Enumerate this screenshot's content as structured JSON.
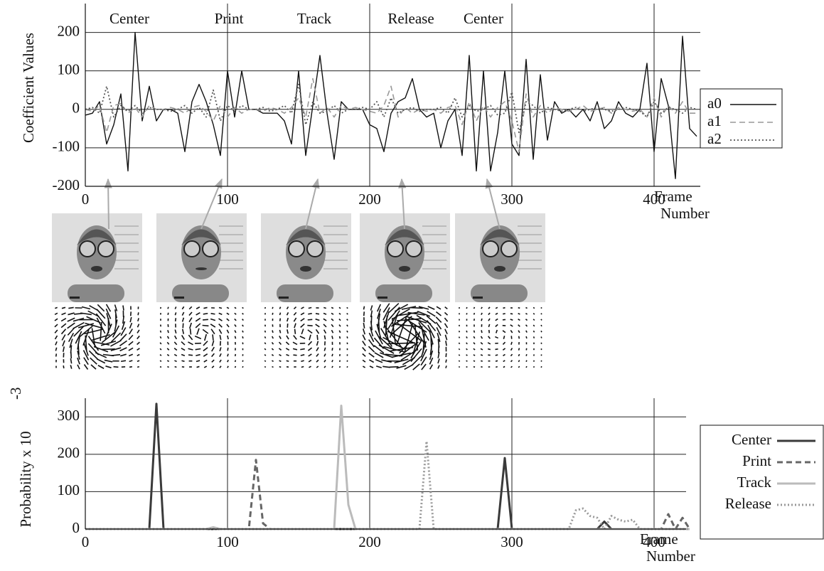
{
  "chart_data": [
    {
      "type": "line",
      "y_label": "Coefficient Values",
      "x_label": [
        "Frame",
        "Number"
      ],
      "annotations": [
        {
          "text": "Center",
          "x": 31
        },
        {
          "text": "Print",
          "x": 101
        },
        {
          "text": "Track",
          "x": 161
        },
        {
          "text": "Release",
          "x": 229
        },
        {
          "text": "Center",
          "x": 280
        }
      ],
      "x": [
        0,
        5,
        10,
        15,
        20,
        25,
        30,
        35,
        40,
        45,
        50,
        55,
        60,
        65,
        70,
        75,
        80,
        85,
        90,
        95,
        100,
        105,
        110,
        115,
        120,
        125,
        130,
        135,
        140,
        145,
        150,
        155,
        160,
        165,
        170,
        175,
        180,
        185,
        190,
        195,
        200,
        205,
        210,
        215,
        220,
        225,
        230,
        235,
        240,
        245,
        250,
        255,
        260,
        265,
        270,
        275,
        280,
        285,
        290,
        295,
        300,
        305,
        310,
        315,
        320,
        325,
        330,
        335,
        340,
        345,
        350,
        355,
        360,
        365,
        370,
        375,
        380,
        385,
        390,
        395,
        400,
        405,
        410,
        415,
        420,
        425,
        430
      ],
      "series": [
        {
          "name": "a0",
          "color": "#111111",
          "line_style": "solid",
          "line_width": 1.4,
          "values": [
            -15,
            -10,
            20,
            -90,
            -40,
            40,
            -160,
            200,
            -30,
            60,
            -30,
            0,
            0,
            -10,
            -110,
            20,
            65,
            20,
            -40,
            -120,
            100,
            -20,
            100,
            0,
            0,
            -10,
            -10,
            -10,
            -30,
            -90,
            100,
            -120,
            10,
            140,
            -10,
            -130,
            20,
            0,
            0,
            0,
            -40,
            -50,
            -110,
            -10,
            20,
            30,
            80,
            0,
            -20,
            -10,
            -100,
            -30,
            0,
            -120,
            140,
            -160,
            100,
            -160,
            -60,
            100,
            -90,
            -120,
            130,
            -130,
            90,
            -80,
            20,
            -10,
            0,
            -20,
            0,
            -30,
            20,
            -50,
            -30,
            20,
            -10,
            -20,
            0,
            120,
            -110,
            80,
            10,
            -180,
            190,
            -50,
            -70
          ]
        },
        {
          "name": "a1",
          "color": "#999999",
          "line_style": "dashed",
          "line_width": 1.6,
          "values": [
            0,
            -5,
            10,
            -60,
            10,
            15,
            -10,
            5,
            -20,
            10,
            0,
            0,
            5,
            0,
            -10,
            5,
            10,
            -5,
            -30,
            10,
            -20,
            5,
            -10,
            0,
            0,
            -5,
            5,
            0,
            -10,
            5,
            30,
            -20,
            80,
            -10,
            5,
            -20,
            10,
            0,
            5,
            0,
            -5,
            -10,
            10,
            60,
            -20,
            5,
            -10,
            0,
            -5,
            0,
            -10,
            5,
            10,
            -40,
            20,
            -30,
            10,
            -20,
            5,
            20,
            -30,
            -110,
            40,
            -20,
            10,
            -10,
            5,
            0,
            -5,
            0,
            10,
            -5,
            0,
            5,
            -10,
            5,
            0,
            -5,
            0,
            -20,
            30,
            -20,
            10,
            -10,
            20,
            -10,
            -10
          ]
        },
        {
          "name": "a2",
          "color": "#555555",
          "line_style": "dotted",
          "line_width": 1.8,
          "values": [
            0,
            5,
            -10,
            60,
            -20,
            10,
            -5,
            10,
            -10,
            5,
            0,
            0,
            -5,
            0,
            10,
            -10,
            5,
            -20,
            50,
            -30,
            10,
            -5,
            10,
            0,
            0,
            5,
            -5,
            0,
            10,
            -10,
            65,
            -40,
            20,
            -10,
            -5,
            10,
            -10,
            0,
            0,
            5,
            0,
            20,
            -20,
            30,
            -10,
            0,
            5,
            -5,
            0,
            0,
            5,
            -10,
            30,
            -20,
            10,
            -5,
            0,
            10,
            -15,
            -10,
            45,
            -60,
            20,
            10,
            -10,
            5,
            0,
            -5,
            0,
            5,
            -5,
            0,
            5,
            0,
            -5,
            0,
            5,
            0,
            -5,
            -20,
            20,
            -10,
            5,
            0,
            -10,
            5,
            0
          ]
        }
      ],
      "xlim": [
        0,
        432.5
      ],
      "xticks": [
        0,
        100,
        200,
        300,
        400
      ],
      "ylim": [
        -200,
        275
      ],
      "yticks": [
        -200,
        -100,
        0,
        100,
        200
      ],
      "grid": true,
      "legend": "right"
    },
    {
      "type": "line",
      "y_label": "Probability x 10",
      "y_label_exponent": "-3",
      "x_label": [
        "Frame",
        "Number"
      ],
      "x": [
        0,
        5,
        10,
        15,
        20,
        25,
        30,
        35,
        40,
        45,
        50,
        55,
        60,
        65,
        70,
        75,
        80,
        85,
        90,
        95,
        100,
        105,
        110,
        115,
        120,
        125,
        130,
        135,
        140,
        145,
        150,
        155,
        160,
        165,
        170,
        175,
        180,
        185,
        190,
        195,
        200,
        205,
        210,
        215,
        220,
        225,
        230,
        235,
        240,
        245,
        250,
        255,
        260,
        265,
        270,
        275,
        280,
        285,
        290,
        295,
        300,
        305,
        310,
        315,
        320,
        325,
        330,
        335,
        340,
        345,
        350,
        355,
        360,
        365,
        370,
        375,
        380,
        385,
        390,
        395,
        400,
        405,
        410,
        415,
        420,
        425
      ],
      "series": [
        {
          "name": "Center",
          "color": "#3a3a3a",
          "line_style": "solid",
          "line_width": 3,
          "values": [
            0,
            0,
            0,
            0,
            0,
            0,
            0,
            0,
            0,
            0,
            335,
            0,
            0,
            0,
            0,
            0,
            0,
            0,
            0,
            0,
            0,
            0,
            0,
            0,
            0,
            0,
            0,
            0,
            0,
            0,
            0,
            0,
            0,
            0,
            0,
            0,
            0,
            0,
            0,
            0,
            0,
            0,
            0,
            0,
            0,
            0,
            0,
            0,
            0,
            0,
            0,
            0,
            0,
            0,
            0,
            0,
            0,
            0,
            0,
            190,
            0,
            0,
            0,
            0,
            0,
            0,
            0,
            0,
            0,
            0,
            0,
            0,
            0,
            20,
            0,
            0,
            0,
            0,
            0,
            0,
            0,
            0,
            0,
            0,
            0,
            0
          ]
        },
        {
          "name": "Print",
          "color": "#666666",
          "line_style": "dashed",
          "line_width": 3,
          "values": [
            0,
            0,
            0,
            0,
            0,
            0,
            0,
            0,
            0,
            0,
            0,
            0,
            0,
            0,
            0,
            0,
            0,
            0,
            0,
            0,
            0,
            0,
            0,
            0,
            185,
            15,
            0,
            0,
            0,
            0,
            0,
            0,
            0,
            0,
            0,
            0,
            0,
            0,
            0,
            0,
            0,
            0,
            0,
            0,
            0,
            0,
            0,
            0,
            0,
            0,
            0,
            0,
            0,
            0,
            0,
            0,
            0,
            0,
            0,
            0,
            0,
            0,
            0,
            0,
            0,
            0,
            0,
            0,
            0,
            0,
            0,
            0,
            0,
            0,
            0,
            0,
            0,
            0,
            0,
            0,
            0,
            0,
            40,
            0,
            30,
            0
          ]
        },
        {
          "name": "Track",
          "color": "#bbbbbb",
          "line_style": "solid",
          "line_width": 3,
          "values": [
            0,
            0,
            0,
            0,
            0,
            0,
            0,
            0,
            0,
            0,
            0,
            0,
            0,
            0,
            0,
            0,
            0,
            0,
            5,
            0,
            0,
            0,
            0,
            0,
            0,
            0,
            0,
            0,
            0,
            0,
            0,
            0,
            0,
            0,
            0,
            0,
            330,
            65,
            0,
            0,
            0,
            0,
            0,
            0,
            0,
            0,
            0,
            0,
            0,
            0,
            0,
            0,
            0,
            0,
            0,
            0,
            0,
            0,
            0,
            0,
            0,
            0,
            0,
            0,
            0,
            0,
            0,
            0,
            0,
            0,
            0,
            0,
            0,
            0,
            0,
            0,
            0,
            0,
            0,
            0,
            0,
            0,
            0,
            0,
            0,
            0
          ]
        },
        {
          "name": "Release",
          "color": "#999999",
          "line_style": "dotted",
          "line_width": 3,
          "values": [
            0,
            0,
            0,
            0,
            0,
            0,
            0,
            0,
            0,
            0,
            0,
            0,
            0,
            0,
            0,
            0,
            0,
            0,
            0,
            0,
            0,
            0,
            0,
            0,
            0,
            0,
            0,
            0,
            0,
            0,
            0,
            0,
            0,
            0,
            0,
            0,
            0,
            0,
            0,
            0,
            0,
            0,
            0,
            0,
            0,
            0,
            0,
            0,
            235,
            0,
            0,
            0,
            0,
            0,
            0,
            0,
            0,
            0,
            0,
            0,
            0,
            0,
            0,
            0,
            0,
            0,
            0,
            0,
            0,
            50,
            55,
            35,
            30,
            0,
            35,
            25,
            20,
            25,
            0,
            0,
            0,
            0,
            0,
            0,
            0,
            0
          ]
        }
      ],
      "xlim": [
        0,
        422.5
      ],
      "xticks": [
        0,
        100,
        200,
        300,
        400
      ],
      "ylim": [
        0,
        350
      ],
      "yticks": [
        0,
        100,
        200,
        300
      ],
      "grid": true,
      "legend": "right"
    }
  ]
}
